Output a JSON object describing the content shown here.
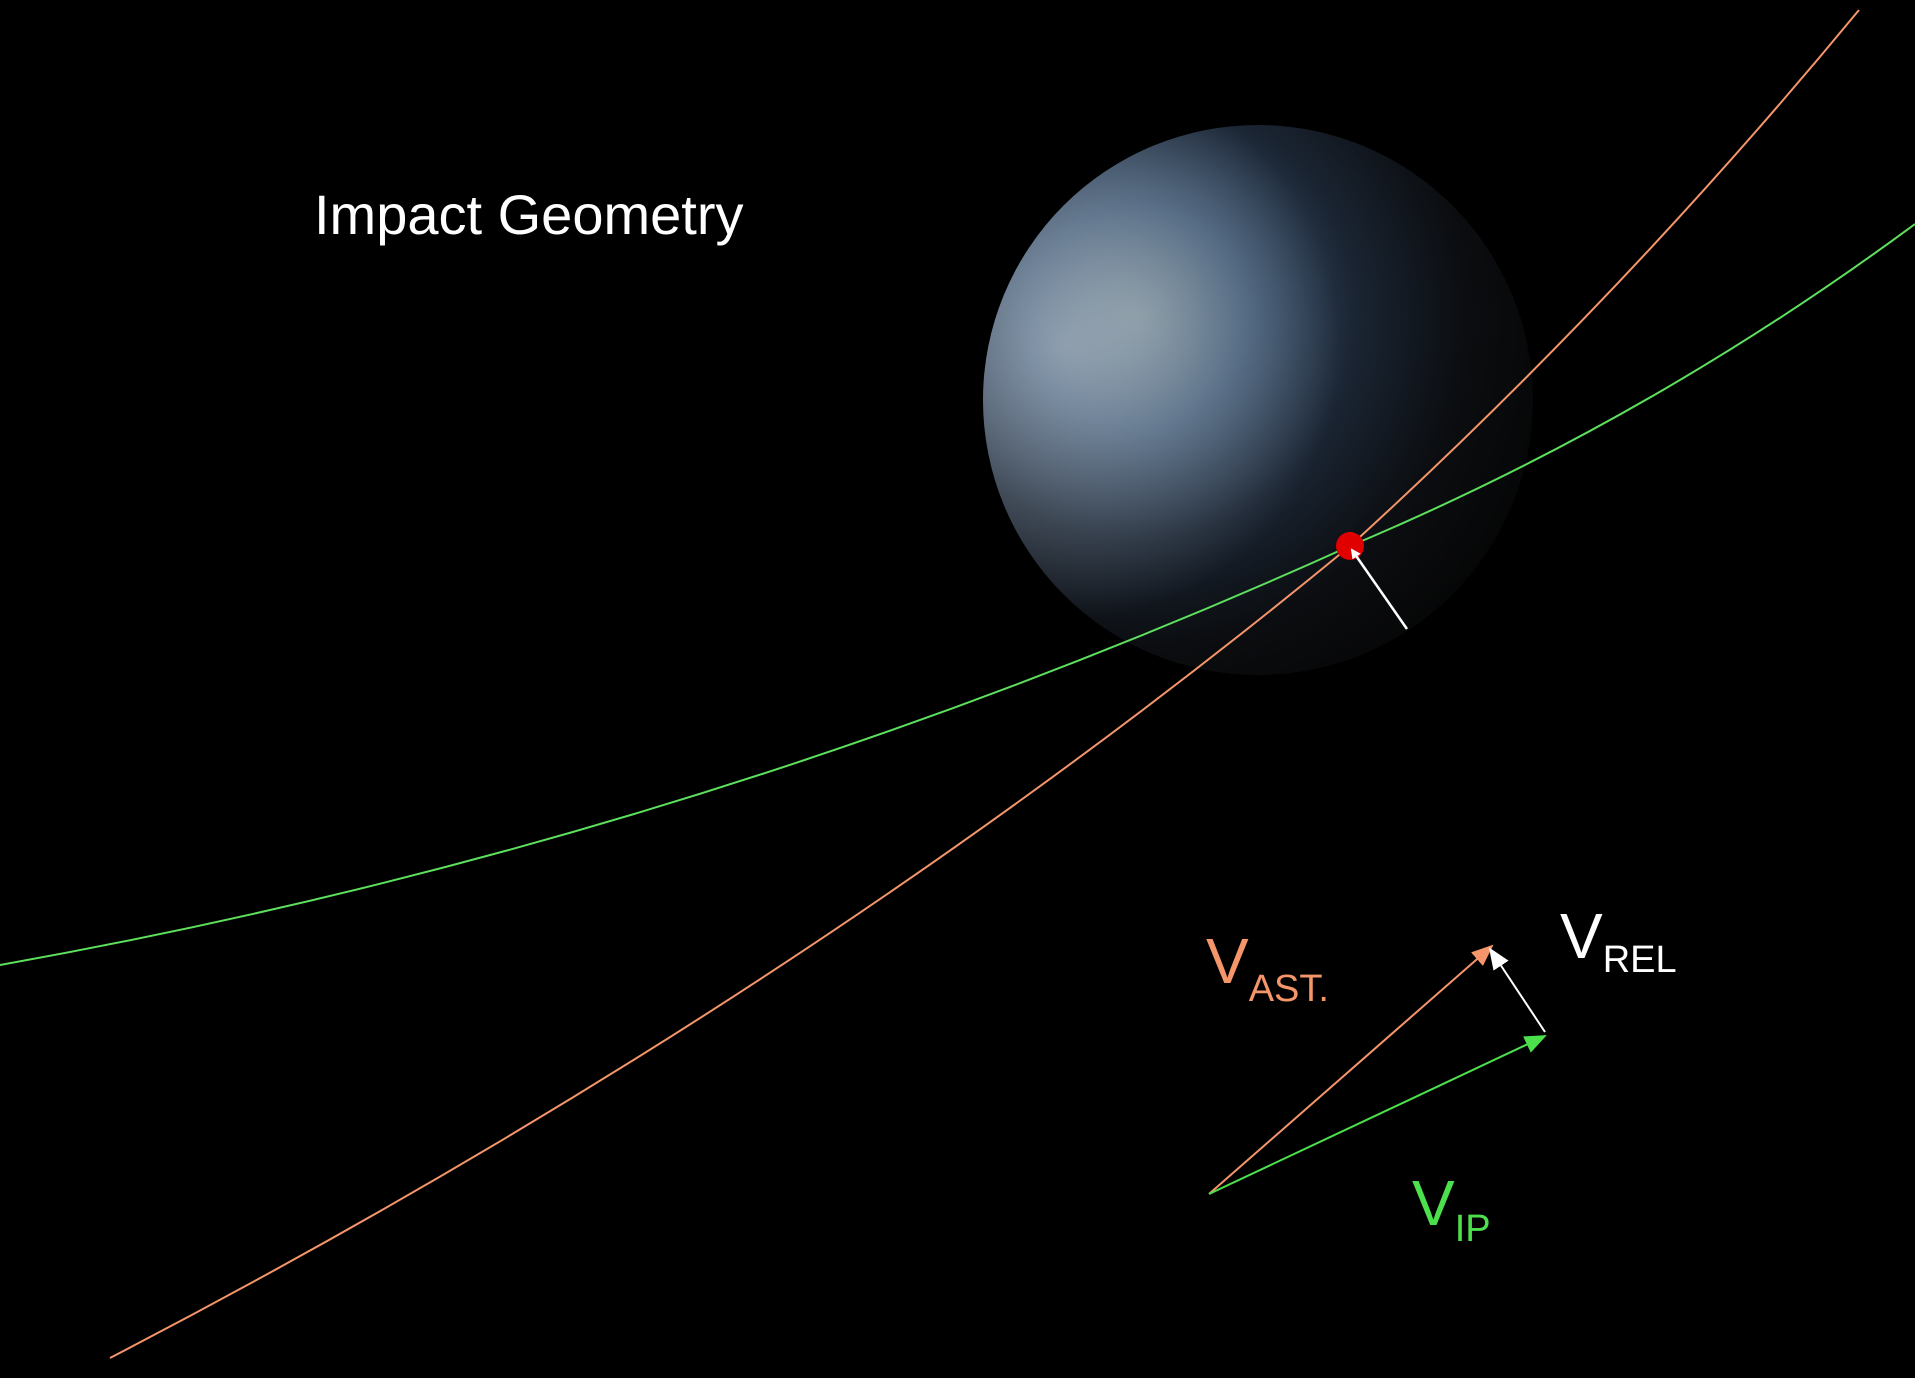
{
  "title": "Impact Geometry",
  "labels": [
    {
      "main": "V",
      "sub": "AST."
    },
    {
      "main": "V",
      "sub": "REL"
    },
    {
      "main": "V",
      "sub": "IP"
    }
  ]
}
